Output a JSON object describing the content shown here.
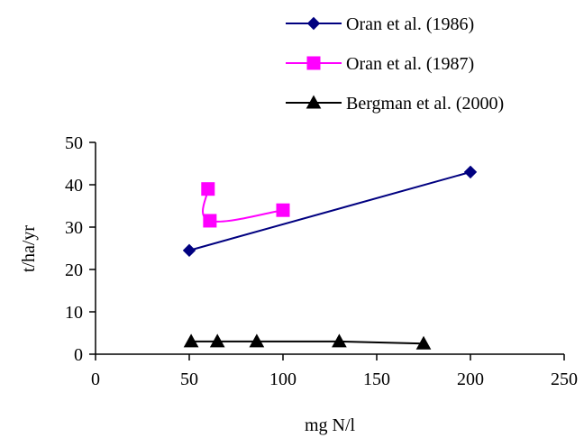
{
  "chart_data": {
    "type": "line",
    "title": "",
    "xlabel": "mg N/l",
    "ylabel": "t/ha/yr",
    "xlim": [
      0,
      250
    ],
    "ylim": [
      0,
      50
    ],
    "xticks": [
      0,
      50,
      100,
      150,
      200,
      250
    ],
    "yticks": [
      0,
      10,
      20,
      30,
      40,
      50
    ],
    "x_tick_labels": [
      "0",
      "50",
      "100",
      "150",
      "200",
      "250"
    ],
    "y_tick_labels": [
      "0",
      "10",
      "20",
      "30",
      "40",
      "50"
    ],
    "grid": false,
    "legend_position": "top-right",
    "series": [
      {
        "name": "Oran et al. (1986)",
        "color": "#000080",
        "marker": "diamond",
        "smooth": false,
        "points": [
          [
            50,
            24.5
          ],
          [
            200,
            43
          ]
        ]
      },
      {
        "name": "Oran et al. (1987)",
        "color": "#ff00ff",
        "marker": "square",
        "smooth": true,
        "points": [
          [
            60,
            39
          ],
          [
            61,
            31.5
          ],
          [
            100,
            34
          ]
        ]
      },
      {
        "name": "Bergman et al. (2000)",
        "color": "#000000",
        "marker": "triangle",
        "smooth": false,
        "points": [
          [
            51,
            3
          ],
          [
            65,
            3
          ],
          [
            86,
            3
          ],
          [
            130,
            3
          ],
          [
            175,
            2.5
          ]
        ]
      }
    ]
  }
}
